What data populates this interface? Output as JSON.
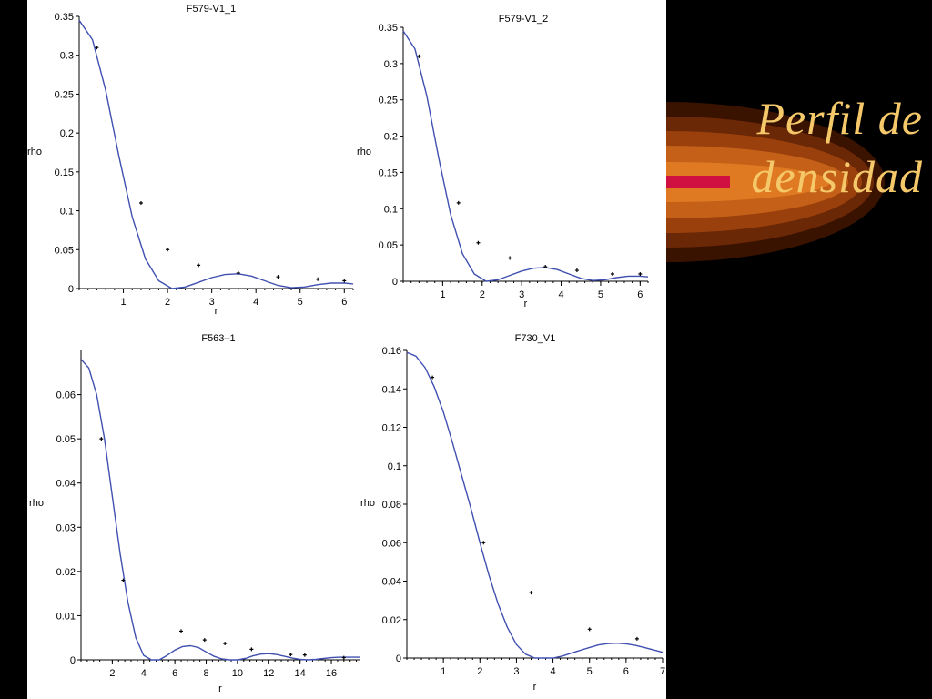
{
  "slide": {
    "title_line1": "Perfil de",
    "title_line2": "densidad",
    "title_color": "#f5c86a",
    "background": "#000000",
    "curve_color": "#4050b0"
  },
  "chart_data": [
    {
      "type": "line",
      "title": "F579-V1_1",
      "xlabel": "r",
      "ylabel": "rho",
      "xlim": [
        0,
        6.2
      ],
      "ylim": [
        0,
        0.35
      ],
      "xticks": [
        1,
        2,
        3,
        4,
        5,
        6
      ],
      "yticks": [
        0,
        0.05,
        0.1,
        0.15,
        0.2,
        0.25,
        0.3,
        0.35
      ],
      "series": [
        {
          "kind": "line",
          "x": [
            0,
            0.3,
            0.6,
            0.9,
            1.2,
            1.5,
            1.8,
            2.1,
            2.4,
            2.7,
            3.0,
            3.3,
            3.6,
            3.9,
            4.2,
            4.5,
            4.8,
            5.1,
            5.4,
            5.7,
            6.0,
            6.2
          ],
          "y": [
            0.345,
            0.32,
            0.255,
            0.17,
            0.092,
            0.038,
            0.01,
            0.0,
            0.002,
            0.008,
            0.014,
            0.018,
            0.019,
            0.016,
            0.01,
            0.004,
            0.001,
            0.002,
            0.005,
            0.007,
            0.007,
            0.006
          ]
        },
        {
          "kind": "points",
          "x": [
            0.4,
            1.4,
            2.0,
            2.7,
            3.6,
            4.5,
            5.4,
            6.0
          ],
          "y": [
            0.31,
            0.11,
            0.05,
            0.03,
            0.02,
            0.015,
            0.012,
            0.01
          ]
        }
      ]
    },
    {
      "type": "line",
      "title": "F579-V1_2",
      "xlabel": "r",
      "ylabel": "rho",
      "xlim": [
        0,
        6.2
      ],
      "ylim": [
        0,
        0.35
      ],
      "xticks": [
        1,
        2,
        3,
        4,
        5,
        6
      ],
      "yticks": [
        0,
        0.05,
        0.1,
        0.15,
        0.2,
        0.25,
        0.3,
        0.35
      ],
      "series": [
        {
          "kind": "line",
          "x": [
            0,
            0.3,
            0.6,
            0.9,
            1.2,
            1.5,
            1.8,
            2.1,
            2.4,
            2.7,
            3.0,
            3.3,
            3.6,
            3.9,
            4.2,
            4.5,
            4.8,
            5.1,
            5.4,
            5.7,
            6.0,
            6.2
          ],
          "y": [
            0.345,
            0.32,
            0.255,
            0.17,
            0.092,
            0.038,
            0.01,
            0.0,
            0.002,
            0.008,
            0.014,
            0.018,
            0.019,
            0.016,
            0.01,
            0.004,
            0.001,
            0.002,
            0.005,
            0.007,
            0.007,
            0.006
          ]
        },
        {
          "kind": "points",
          "x": [
            0.4,
            1.4,
            1.9,
            2.7,
            3.6,
            4.4,
            5.3,
            6.0
          ],
          "y": [
            0.31,
            0.108,
            0.053,
            0.032,
            0.02,
            0.015,
            0.01,
            0.01
          ]
        }
      ]
    },
    {
      "type": "line",
      "title": "F563–1",
      "xlabel": "r",
      "ylabel": "rho",
      "xlim": [
        0,
        17.8
      ],
      "ylim": [
        0,
        0.07
      ],
      "xticks": [
        2,
        4,
        6,
        8,
        10,
        12,
        14,
        16
      ],
      "yticks": [
        0,
        0.01,
        0.02,
        0.03,
        0.04,
        0.05,
        0.06
      ],
      "series": [
        {
          "kind": "line",
          "x": [
            0,
            0.5,
            1,
            1.5,
            2,
            2.5,
            3,
            3.5,
            4,
            4.5,
            5,
            5.5,
            6,
            6.5,
            7,
            7.5,
            8,
            8.5,
            9,
            9.5,
            10,
            10.5,
            11,
            11.5,
            12,
            12.5,
            13,
            13.5,
            14,
            14.5,
            15,
            15.5,
            16,
            16.5,
            17,
            17.8
          ],
          "y": [
            0.068,
            0.066,
            0.06,
            0.05,
            0.037,
            0.024,
            0.013,
            0.005,
            0.001,
            0.0,
            0.0,
            0.001,
            0.0022,
            0.003,
            0.0032,
            0.0028,
            0.0018,
            0.0008,
            0.0002,
            0.0,
            0.0,
            0.0003,
            0.0009,
            0.0013,
            0.0014,
            0.0012,
            0.0008,
            0.0004,
            0.0001,
            0.0,
            0.0001,
            0.0003,
            0.0005,
            0.0006,
            0.0006,
            0.0006
          ]
        },
        {
          "kind": "points",
          "x": [
            1.3,
            2.7,
            6.4,
            7.9,
            9.2,
            10.9,
            13.4,
            14.3,
            16.8
          ],
          "y": [
            0.05,
            0.018,
            0.0065,
            0.0045,
            0.0037,
            0.0024,
            0.0012,
            0.0011,
            0.0005
          ]
        }
      ]
    },
    {
      "type": "line",
      "title": "F730_V1",
      "xlabel": "r",
      "ylabel": "rho",
      "xlim": [
        0,
        7
      ],
      "ylim": [
        0,
        0.16
      ],
      "xticks": [
        1,
        2,
        3,
        4,
        5,
        6,
        7
      ],
      "yticks": [
        0,
        0.02,
        0.04,
        0.06,
        0.08,
        0.1,
        0.12,
        0.14,
        0.16
      ],
      "series": [
        {
          "kind": "line",
          "x": [
            0,
            0.25,
            0.5,
            0.75,
            1,
            1.25,
            1.5,
            1.75,
            2,
            2.25,
            2.5,
            2.75,
            3,
            3.25,
            3.5,
            3.75,
            4,
            4.25,
            4.5,
            4.75,
            5,
            5.25,
            5.5,
            5.75,
            6,
            6.25,
            6.5,
            6.75,
            7
          ],
          "y": [
            0.159,
            0.157,
            0.151,
            0.141,
            0.128,
            0.112,
            0.095,
            0.078,
            0.06,
            0.043,
            0.028,
            0.016,
            0.007,
            0.002,
            0.0,
            0.0,
            0.0,
            0.001,
            0.0025,
            0.004,
            0.0055,
            0.0068,
            0.0075,
            0.0077,
            0.0074,
            0.0066,
            0.0055,
            0.0042,
            0.003
          ]
        },
        {
          "kind": "points",
          "x": [
            0.7,
            2.1,
            3.4,
            5.0,
            6.3
          ],
          "y": [
            0.146,
            0.06,
            0.034,
            0.015,
            0.01
          ]
        }
      ]
    }
  ]
}
